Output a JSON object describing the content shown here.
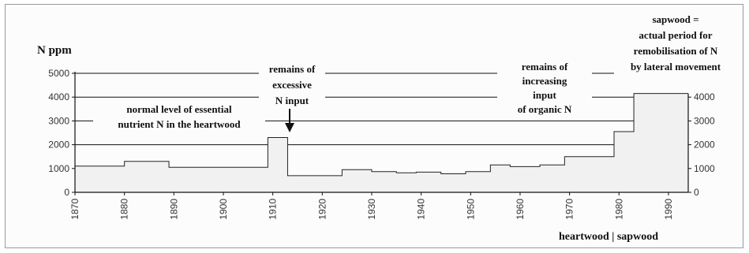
{
  "chart_data": {
    "type": "area",
    "ylabel": "N ppm",
    "xlabel": "heartwood | sapwood",
    "xlim": [
      1870,
      1994
    ],
    "ylim": [
      0,
      5000
    ],
    "x_ticks": [
      1870,
      1880,
      1890,
      1900,
      1910,
      1920,
      1930,
      1940,
      1950,
      1960,
      1970,
      1980,
      1990
    ],
    "y_ticks_left": [
      0,
      1000,
      2000,
      3000,
      4000,
      5000
    ],
    "y_ticks_right": [
      0,
      1000,
      2000,
      3000,
      4000
    ],
    "grid_y": [
      2000,
      3000,
      4000,
      5000
    ],
    "series": [
      {
        "x": [
          1870,
          1880,
          1880,
          1889,
          1889,
          1909,
          1909,
          1913,
          1913,
          1924,
          1924,
          1930,
          1930,
          1935,
          1935,
          1939,
          1939,
          1944,
          1944,
          1949,
          1949,
          1954,
          1954,
          1958,
          1958,
          1964,
          1964,
          1969,
          1969,
          1979,
          1979,
          1983,
          1983,
          1986,
          1986,
          1994
        ],
        "values": [
          1100,
          1100,
          1300,
          1300,
          1050,
          1050,
          2300,
          2300,
          700,
          700,
          950,
          950,
          870,
          870,
          820,
          820,
          850,
          850,
          780,
          780,
          870,
          870,
          1150,
          1150,
          1080,
          1080,
          1150,
          1150,
          1500,
          1500,
          2550,
          2550,
          4150,
          4150,
          4150,
          4150
        ]
      }
    ],
    "colors": {
      "fill": "#f1f1f1",
      "line": "#222222",
      "grid": "#111111"
    },
    "annotations": [
      {
        "lines": [
          "normal level of essential",
          "nutrient N in the heartwood"
        ]
      },
      {
        "lines": [
          "remains of",
          "excessive",
          "N input"
        ]
      },
      {
        "lines": [
          "remains of",
          "increasing",
          "input",
          "of organic N"
        ]
      },
      {
        "lines": [
          "sapwood =",
          "actual period for",
          "remobilisation of N",
          "by lateral movement"
        ]
      }
    ]
  }
}
